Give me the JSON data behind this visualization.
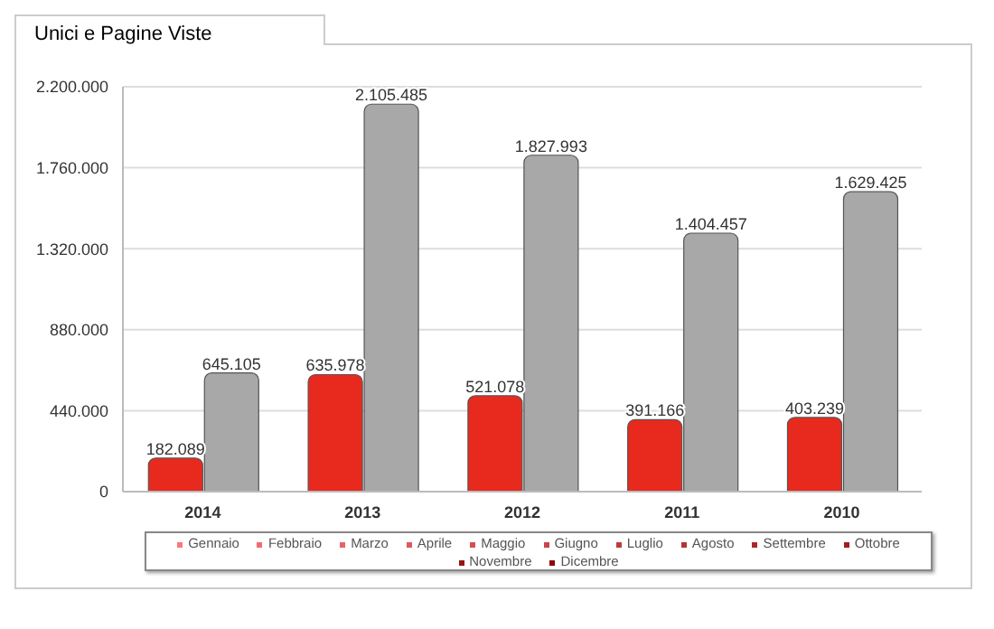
{
  "chart_data": {
    "type": "bar",
    "title": "Unici e Pagine Viste",
    "categories": [
      "2014",
      "2013",
      "2012",
      "2011",
      "2010"
    ],
    "series": [
      {
        "color": "#e82a1e",
        "values": [
          182089,
          635978,
          521078,
          391166,
          403239
        ],
        "value_labels": [
          "182.089",
          "635.978",
          "521.078",
          "391.166",
          "403.239"
        ]
      },
      {
        "color": "#a8a8a8",
        "values": [
          645105,
          2105485,
          1827993,
          1404457,
          1629425
        ],
        "value_labels": [
          "645.105",
          "2.105.485",
          "1.827.993",
          "1.404.457",
          "1.629.425"
        ]
      }
    ],
    "ylim": [
      0,
      2200000
    ],
    "yticks": [
      0,
      {
        "value": 440000,
        "label": "440.000"
      },
      {
        "value": 880000,
        "label": "880.000"
      },
      {
        "value": 1320000,
        "label": "1.320.000"
      },
      {
        "value": 1760000,
        "label": "1.760.000"
      },
      {
        "value": 2200000,
        "label": "2.200.000"
      }
    ],
    "grid": "y",
    "annotations": [
      "Gennaio",
      "Febbraio",
      "Marzo",
      "Aprile",
      "Maggio",
      "Giugno",
      "Luglio",
      "Agosto",
      "Settembre",
      "Ottobre",
      "Novembre",
      "Dicembre"
    ]
  }
}
